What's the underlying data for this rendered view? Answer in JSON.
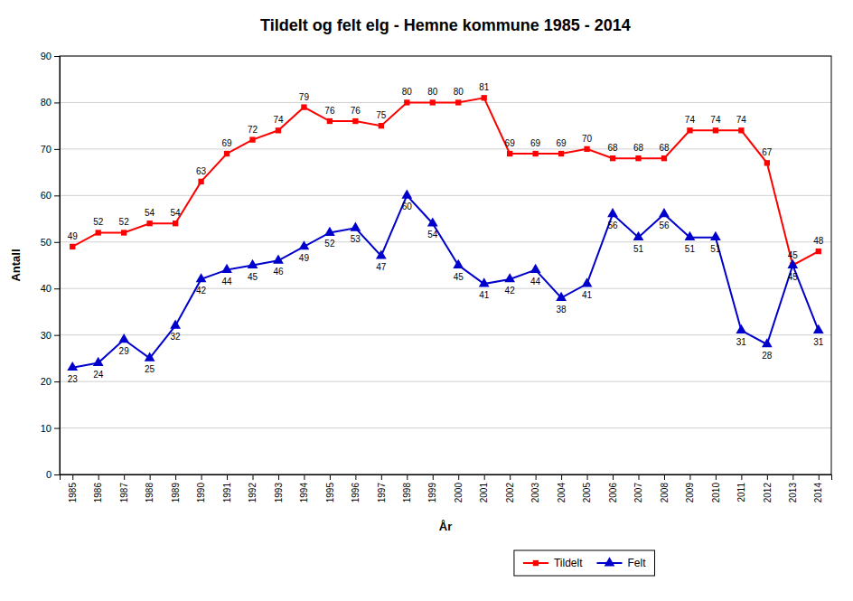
{
  "chart_data": {
    "type": "line",
    "title": "Tildelt og felt elg - Hemne kommune  1985 - 2014",
    "x_label": "År",
    "y_label": "Antall",
    "x": [
      1985,
      1986,
      1987,
      1988,
      1989,
      1990,
      1991,
      1992,
      1993,
      1994,
      1995,
      1996,
      1997,
      1998,
      1999,
      2000,
      2001,
      2002,
      2003,
      2004,
      2005,
      2006,
      2007,
      2008,
      2009,
      2010,
      2011,
      2012,
      2013,
      2014
    ],
    "series": [
      {
        "name": "Tildelt",
        "color": "#FF0000",
        "marker": "square",
        "values": [
          49,
          52,
          52,
          54,
          54,
          63,
          69,
          72,
          74,
          79,
          76,
          76,
          75,
          80,
          80,
          80,
          81,
          69,
          69,
          69,
          70,
          68,
          68,
          68,
          74,
          74,
          74,
          67,
          45,
          48
        ]
      },
      {
        "name": "Felt",
        "color": "#0000CC",
        "marker": "triangle",
        "values": [
          23,
          24,
          29,
          25,
          32,
          42,
          44,
          45,
          46,
          49,
          52,
          53,
          47,
          60,
          54,
          45,
          41,
          42,
          44,
          38,
          41,
          56,
          51,
          56,
          51,
          51,
          31,
          28,
          45,
          31
        ]
      }
    ],
    "xlim": [
      1984.5,
      2014.5
    ],
    "xticks": [
      1985,
      1986,
      1987,
      1988,
      1989,
      1990,
      1991,
      1992,
      1993,
      1994,
      1995,
      1996,
      1997,
      1998,
      1999,
      2000,
      2001,
      2002,
      2003,
      2004,
      2005,
      2006,
      2007,
      2008,
      2009,
      2010,
      2011,
      2012,
      2013,
      2014
    ],
    "ylim": [
      0,
      90
    ],
    "yticks": [
      0,
      10,
      20,
      30,
      40,
      50,
      60,
      70,
      80,
      90
    ],
    "grid": "y",
    "legend": "bottom",
    "data_labels": true
  }
}
